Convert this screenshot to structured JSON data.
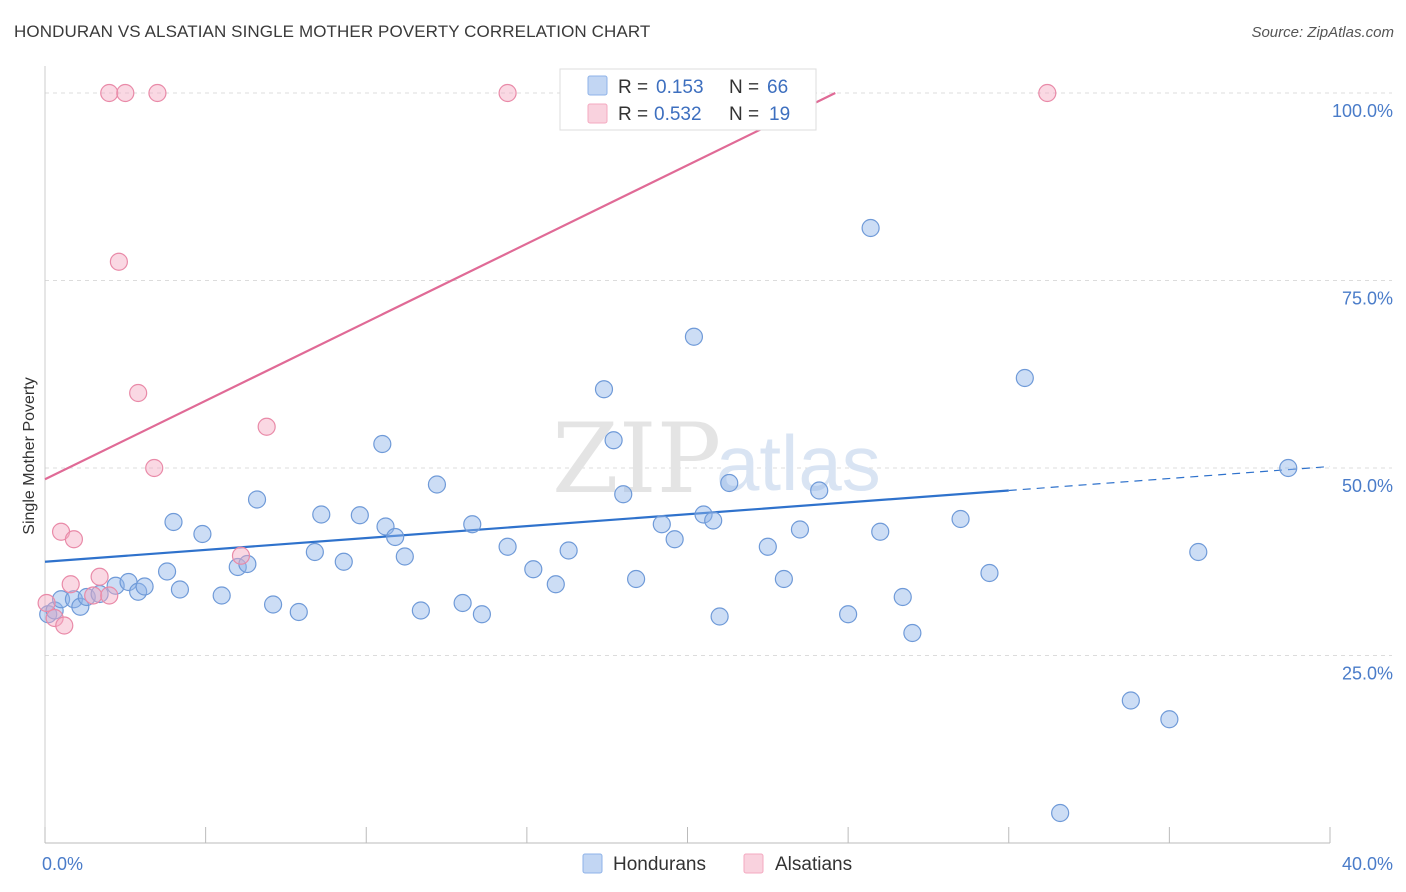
{
  "header": {
    "title": "HONDURAN VS ALSATIAN SINGLE MOTHER POVERTY CORRELATION CHART",
    "source": "Source: ZipAtlas.com"
  },
  "watermark": {
    "zip": "ZIP",
    "atlas": "atlas"
  },
  "legend": {
    "rows": [
      {
        "r_label": "R =",
        "r_value": "0.153",
        "n_label": "N =",
        "n_value": "66",
        "color": "#8fb3e8"
      },
      {
        "r_label": "R =",
        "r_value": "0.532",
        "n_label": "N =",
        "n_value": "19",
        "color": "#f4a9c0"
      }
    ]
  },
  "bottom_legend": {
    "items": [
      "Hondurans",
      "Alsatians"
    ]
  },
  "chart_data": {
    "type": "scatter",
    "ylabel": "Single Mother Poverty",
    "xlim": [
      0,
      40
    ],
    "ylim": [
      0,
      102
    ],
    "x_ticks": [
      {
        "value": 0,
        "label": "0.0%"
      },
      {
        "value": 40,
        "label": "40.0%"
      }
    ],
    "y_ticks": [
      {
        "value": 25,
        "label": "25.0%"
      },
      {
        "value": 50,
        "label": "50.0%"
      },
      {
        "value": 75,
        "label": "75.0%"
      },
      {
        "value": 100,
        "label": "100.0%"
      }
    ],
    "grid": true,
    "series": [
      {
        "name": "Hondurans",
        "color": "#8fb3e8",
        "stroke": "#6f9ad8",
        "trend": {
          "x0": 0,
          "y0": 37.5,
          "x1": 30,
          "y1": 47.0,
          "dash_to_x": 40,
          "dash_to_y": 50.2,
          "color": "#2f72cc"
        },
        "points": [
          [
            0.1,
            30.5
          ],
          [
            0.3,
            31.0
          ],
          [
            0.5,
            32.5
          ],
          [
            0.9,
            32.5
          ],
          [
            1.1,
            31.5
          ],
          [
            1.3,
            32.8
          ],
          [
            1.7,
            33.2
          ],
          [
            2.2,
            34.3
          ],
          [
            2.6,
            34.8
          ],
          [
            2.9,
            33.5
          ],
          [
            3.1,
            34.2
          ],
          [
            3.8,
            36.2
          ],
          [
            4.0,
            42.8
          ],
          [
            4.2,
            33.8
          ],
          [
            4.9,
            41.2
          ],
          [
            5.5,
            33.0
          ],
          [
            6.0,
            36.8
          ],
          [
            6.3,
            37.2
          ],
          [
            6.6,
            45.8
          ],
          [
            7.1,
            31.8
          ],
          [
            7.9,
            30.8
          ],
          [
            8.4,
            38.8
          ],
          [
            8.6,
            43.8
          ],
          [
            9.3,
            37.5
          ],
          [
            9.8,
            43.7
          ],
          [
            10.5,
            53.2
          ],
          [
            10.6,
            42.2
          ],
          [
            10.9,
            40.8
          ],
          [
            11.2,
            38.2
          ],
          [
            11.7,
            31.0
          ],
          [
            12.2,
            47.8
          ],
          [
            13.0,
            32.0
          ],
          [
            13.3,
            42.5
          ],
          [
            13.6,
            30.5
          ],
          [
            14.4,
            39.5
          ],
          [
            15.2,
            36.5
          ],
          [
            15.9,
            34.5
          ],
          [
            16.3,
            39.0
          ],
          [
            17.4,
            60.5
          ],
          [
            17.7,
            53.7
          ],
          [
            18.0,
            46.5
          ],
          [
            18.4,
            35.2
          ],
          [
            19.2,
            42.5
          ],
          [
            19.6,
            40.5
          ],
          [
            20.2,
            67.5
          ],
          [
            20.5,
            43.8
          ],
          [
            20.8,
            43.0
          ],
          [
            21.0,
            30.2
          ],
          [
            21.3,
            48.0
          ],
          [
            22.5,
            39.5
          ],
          [
            23.0,
            35.2
          ],
          [
            23.5,
            41.8
          ],
          [
            24.1,
            47.0
          ],
          [
            25.0,
            30.5
          ],
          [
            25.7,
            82.0
          ],
          [
            26.0,
            41.5
          ],
          [
            26.7,
            32.8
          ],
          [
            27.0,
            28.0
          ],
          [
            28.5,
            43.2
          ],
          [
            29.4,
            36.0
          ],
          [
            30.5,
            62.0
          ],
          [
            31.6,
            4.0
          ],
          [
            33.8,
            19.0
          ],
          [
            35.0,
            16.5
          ],
          [
            35.9,
            38.8
          ],
          [
            38.7,
            50.0
          ]
        ]
      },
      {
        "name": "Alsatians",
        "color": "#f4a9c0",
        "stroke": "#e98aa8",
        "trend": {
          "x0": 0,
          "y0": 48.5,
          "x1": 24.6,
          "y1": 100.0,
          "color": "#e06a96"
        },
        "points": [
          [
            0.05,
            32.0
          ],
          [
            0.3,
            30.0
          ],
          [
            0.5,
            41.5
          ],
          [
            0.6,
            29.0
          ],
          [
            0.8,
            34.5
          ],
          [
            0.9,
            40.5
          ],
          [
            1.5,
            33.0
          ],
          [
            1.7,
            35.5
          ],
          [
            2.0,
            33.0
          ],
          [
            2.0,
            100.0
          ],
          [
            2.3,
            77.5
          ],
          [
            2.5,
            100.0
          ],
          [
            2.9,
            60.0
          ],
          [
            3.4,
            50.0
          ],
          [
            3.5,
            100.0
          ],
          [
            6.1,
            38.3
          ],
          [
            6.9,
            55.5
          ],
          [
            14.4,
            100.0
          ],
          [
            31.2,
            100.0
          ]
        ]
      }
    ]
  }
}
